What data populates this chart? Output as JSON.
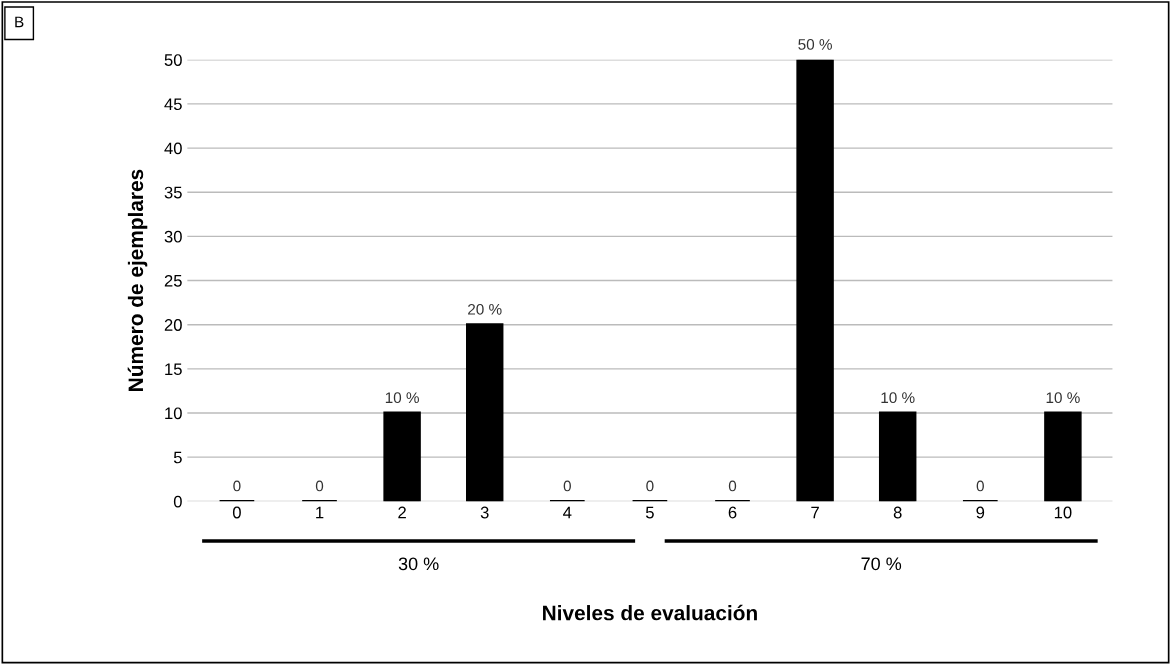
{
  "chart_data": {
    "type": "bar",
    "xlabel": "Niveles de evaluación",
    "ylabel": "Número de ejemplares",
    "categories": [
      "0",
      "1",
      "2",
      "3",
      "4",
      "5",
      "6",
      "7",
      "8",
      "9",
      "10"
    ],
    "values": [
      0,
      0,
      10,
      20,
      0,
      0,
      0,
      50,
      10,
      0,
      10
    ],
    "value_labels": [
      "0",
      "0",
      "10 %",
      "20 %",
      "0",
      "0",
      "0",
      "50 %",
      "10 %",
      "0",
      "10 %"
    ],
    "color": "#000000",
    "ylim": [
      0,
      50
    ],
    "yticks": [
      0,
      5,
      10,
      15,
      20,
      25,
      30,
      35,
      40,
      45,
      50
    ],
    "grid": "y",
    "annotations": [
      "B",
      "30 %",
      "70 %"
    ]
  }
}
